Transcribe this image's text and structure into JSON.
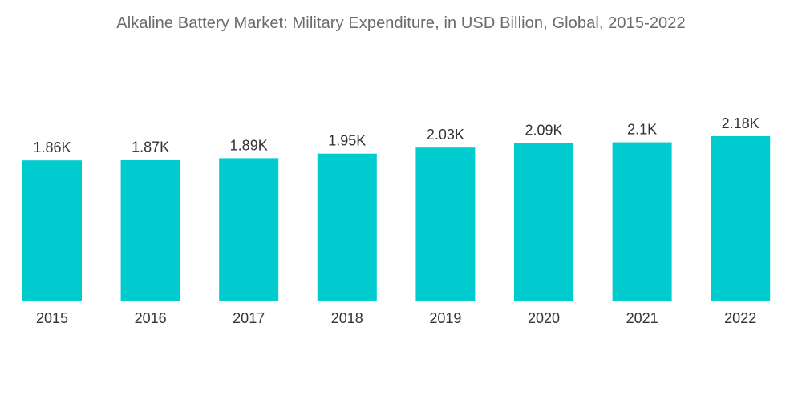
{
  "chart_data": {
    "type": "bar",
    "title": "Alkaline Battery Market: Military Expenditure, in USD Billion, Global, 2015-2022",
    "categories": [
      "2015",
      "2016",
      "2017",
      "2018",
      "2019",
      "2020",
      "2021",
      "2022"
    ],
    "values": [
      1860,
      1870,
      1890,
      1950,
      2030,
      2090,
      2100,
      2180
    ],
    "data_labels": [
      "1.86K",
      "1.87K",
      "1.89K",
      "1.95K",
      "2.03K",
      "2.09K",
      "2.1K",
      "2.18K"
    ],
    "xlabel": "",
    "ylabel": "",
    "ylim": [
      0,
      2180
    ],
    "grid": false,
    "legend": "none",
    "bar_color": "#00cccf"
  }
}
